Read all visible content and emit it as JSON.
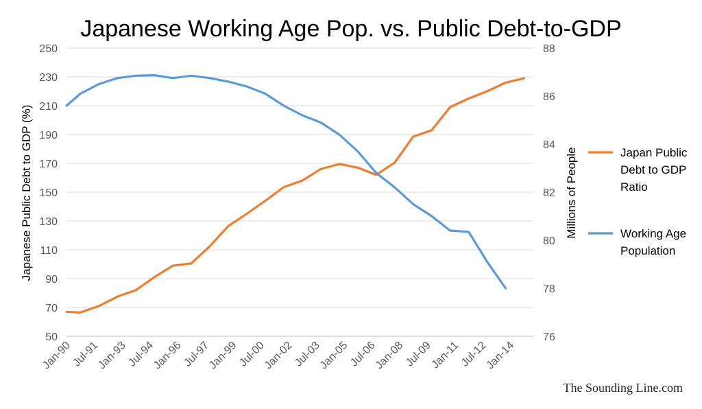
{
  "chart_data": {
    "type": "line",
    "title": "Japanese Working Age Pop. vs. Public Debt-to-GDP",
    "ylabel_left": "Japanese Public Debt to GDP (%)",
    "ylabel_right": "Millions of People",
    "ylim_left": [
      50,
      250
    ],
    "ylim_right": [
      76,
      88
    ],
    "yticks_left": [
      50,
      70,
      90,
      110,
      130,
      150,
      170,
      190,
      210,
      230,
      250
    ],
    "yticks_right": [
      76,
      78,
      80,
      82,
      84,
      86,
      88
    ],
    "x_tick_labels": [
      "Jan-90",
      "Jul-91",
      "Jan-93",
      "Jul-94",
      "Jan-96",
      "Jul-97",
      "Jan-99",
      "Jul-00",
      "Jan-02",
      "Jul-03",
      "Jan-05",
      "Jul-06",
      "Jan-08",
      "Jul-09",
      "Jan-11",
      "Jul-12",
      "Jan-14"
    ],
    "grid": true,
    "legend_position": "right",
    "series": [
      {
        "name": "Japan Public Debt to GDP Ratio",
        "axis": "left",
        "color": "#ED7D31",
        "points": [
          [
            "1990-01",
            67
          ],
          [
            "1990-10",
            66.5
          ],
          [
            "1991-10",
            71
          ],
          [
            "1992-10",
            77.5
          ],
          [
            "1993-10",
            82
          ],
          [
            "1994-10",
            91
          ],
          [
            "1995-10",
            99
          ],
          [
            "1996-10",
            100.5
          ],
          [
            "1997-10",
            112.5
          ],
          [
            "1998-10",
            126.5
          ],
          [
            "1999-10",
            135
          ],
          [
            "2000-10",
            144
          ],
          [
            "2001-10",
            153.5
          ],
          [
            "2002-10",
            158
          ],
          [
            "2003-10",
            166
          ],
          [
            "2004-10",
            169.5
          ],
          [
            "2005-10",
            167
          ],
          [
            "2006-10",
            162
          ],
          [
            "2007-10",
            170.5
          ],
          [
            "2008-10",
            188.5
          ],
          [
            "2009-10",
            193
          ],
          [
            "2010-10",
            209
          ],
          [
            "2011-10",
            215
          ],
          [
            "2012-10",
            220
          ],
          [
            "2013-10",
            226
          ],
          [
            "2014-10",
            229
          ]
        ]
      },
      {
        "name": "Working Age Population",
        "axis": "right",
        "color": "#5B9BD5",
        "points": [
          [
            "1990-01",
            85.6
          ],
          [
            "1990-10",
            86.1
          ],
          [
            "1991-10",
            86.5
          ],
          [
            "1992-10",
            86.75
          ],
          [
            "1993-10",
            86.85
          ],
          [
            "1994-10",
            86.87
          ],
          [
            "1995-10",
            86.75
          ],
          [
            "1996-10",
            86.85
          ],
          [
            "1997-10",
            86.75
          ],
          [
            "1998-10",
            86.6
          ],
          [
            "1999-10",
            86.4
          ],
          [
            "2000-10",
            86.1
          ],
          [
            "2001-10",
            85.6
          ],
          [
            "2002-10",
            85.2
          ],
          [
            "2003-10",
            84.9
          ],
          [
            "2004-10",
            84.4
          ],
          [
            "2005-10",
            83.7
          ],
          [
            "2006-10",
            82.8
          ],
          [
            "2007-10",
            82.2
          ],
          [
            "2008-10",
            81.5
          ],
          [
            "2009-10",
            81.0
          ],
          [
            "2010-10",
            80.4
          ],
          [
            "2011-10",
            80.35
          ],
          [
            "2012-10",
            79.1
          ],
          [
            "2013-10",
            78.0
          ]
        ]
      }
    ],
    "legend": [
      {
        "lines": [
          "Japan Public",
          "Debt to GDP",
          "Ratio"
        ],
        "color": "#ED7D31"
      },
      {
        "lines": [
          "Working Age",
          "Population"
        ],
        "color": "#5B9BD5"
      }
    ]
  },
  "watermark": "The Sounding Line.com"
}
